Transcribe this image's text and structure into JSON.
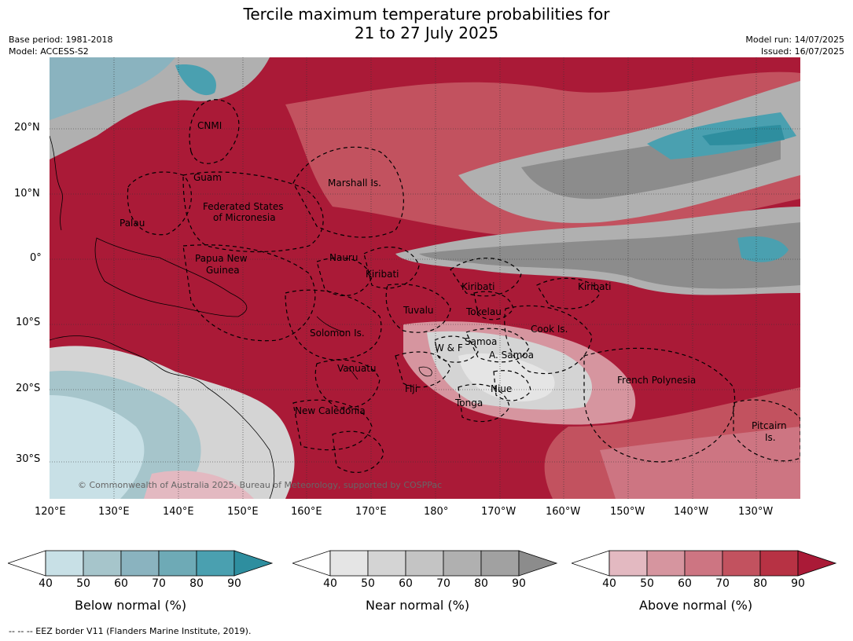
{
  "title_line1": "Tercile maximum temperature probabilities for",
  "title_line2": "21 to 27 July 2025",
  "meta_left": [
    "Base period: 1981-2018",
    "Model: ACCESS-S2"
  ],
  "meta_right": [
    "Model run: 14/07/2025",
    "Issued: 16/07/2025"
  ],
  "colors": {
    "above": [
      "#ffffff",
      "#e3b9c1",
      "#d6959f",
      "#cd7582",
      "#c2525f",
      "#b73244",
      "#aa1a37"
    ],
    "near": [
      "#ffffff",
      "#e5e5e5",
      "#d4d4d4",
      "#c4c4c4",
      "#b0b0b0",
      "#a1a1a1",
      "#8c8c8c"
    ],
    "below": [
      "#ffffff",
      "#c8e0e6",
      "#a6c5cb",
      "#8ab3bf",
      "#6eaab6",
      "#4aa0b0",
      "#2e8e9f"
    ],
    "land_outline": "#000000"
  },
  "map": {
    "lat_labels": [
      "20°N",
      "10°N",
      "0°",
      "10°S",
      "20°S",
      "30°S"
    ],
    "lon_labels": [
      "120°E",
      "130°E",
      "140°E",
      "150°E",
      "160°E",
      "170°E",
      "180°",
      "170°W",
      "160°W",
      "150°W",
      "140°W",
      "130°W"
    ],
    "regions": [
      "CNMI",
      "Guam",
      "Marshall Is.",
      "Palau",
      "Federated States",
      "of Micronesia",
      "Papua New",
      "Guinea",
      "Nauru",
      "Kiribati",
      "Kiribati",
      "Kiribati",
      "Tuvalu",
      "Tokelau",
      "Cook Is.",
      "Solomon Is.",
      "W & F",
      "Samoa",
      "A. Samoa",
      "Vanuatu",
      "Fiji",
      "Niue",
      "French Polynesia",
      "Tonga",
      "New Caledonia",
      "Pitcairn",
      "Is."
    ],
    "copyright": "© Commonwealth of Australia 2025, Bureau of Meteorology, supported by COSPPac"
  },
  "colorbars": [
    {
      "label": "Below normal (%)",
      "ticks": [
        "40",
        "50",
        "60",
        "70",
        "80",
        "90"
      ]
    },
    {
      "label": "Near normal (%)",
      "ticks": [
        "40",
        "50",
        "60",
        "70",
        "80",
        "90"
      ]
    },
    {
      "label": "Above normal (%)",
      "ticks": [
        "40",
        "50",
        "60",
        "70",
        "80",
        "90"
      ]
    }
  ],
  "footer": "--  --  -- EEZ border V11 (Flanders Marine Institute, 2019)."
}
